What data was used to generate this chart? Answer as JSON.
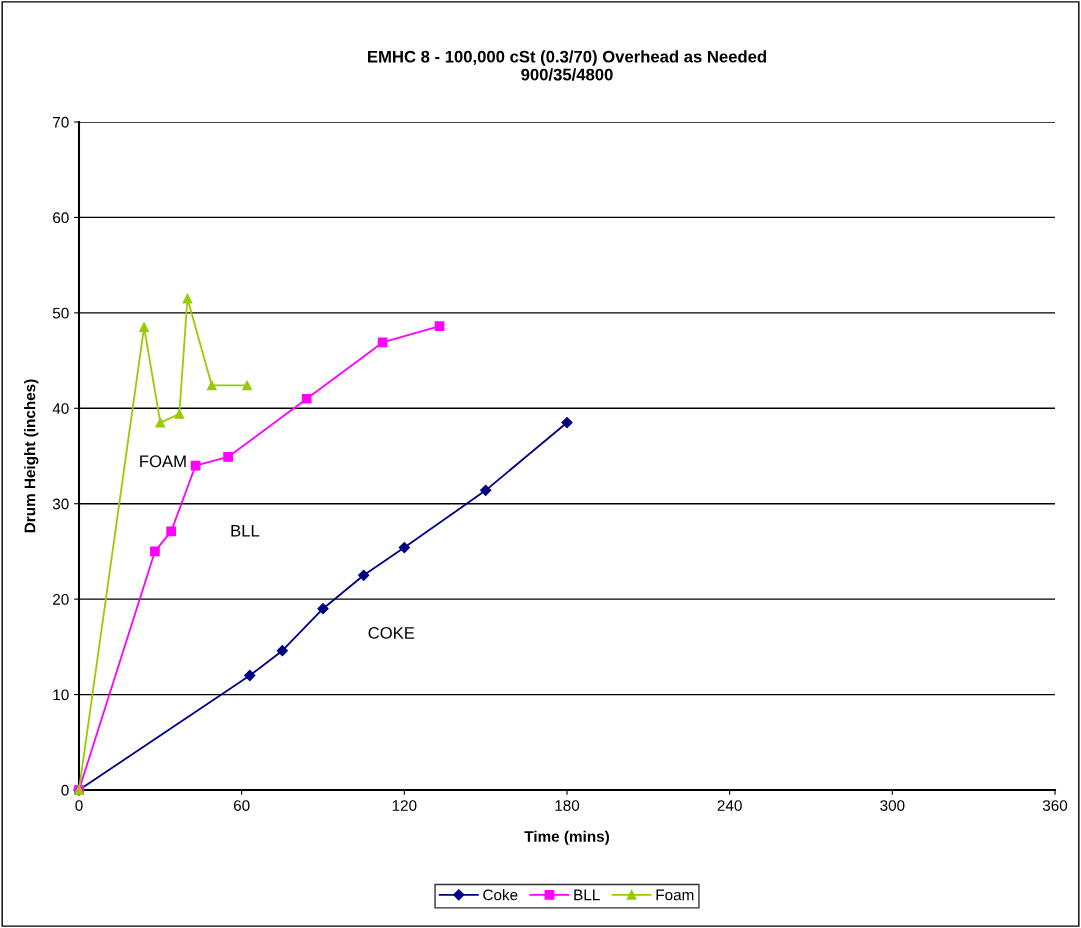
{
  "chart_data": {
    "type": "line",
    "title": "EMHC 8 - 100,000 cSt (0.3/70) Overhead as Needed\n900/35/4800",
    "xlabel": "Time (mins)",
    "ylabel": "Drum Height (inches)",
    "xlim": [
      0,
      360
    ],
    "xticks": [
      0,
      60,
      120,
      180,
      240,
      300,
      360
    ],
    "ylim": [
      0,
      70
    ],
    "yticks": [
      0,
      10,
      20,
      30,
      40,
      50,
      60,
      70
    ],
    "grid": "y",
    "legend": "bottom",
    "series": [
      {
        "name": "Coke",
        "color": "#000080",
        "marker": "diamond",
        "x": [
          0,
          63,
          75,
          90,
          105,
          120,
          150,
          180
        ],
        "values": [
          0,
          12,
          14.6,
          19,
          22.5,
          25.4,
          31.4,
          38.5
        ]
      },
      {
        "name": "BLL",
        "color": "#ff00ff",
        "marker": "square",
        "x": [
          0,
          28,
          34,
          43,
          55,
          84,
          112,
          133
        ],
        "values": [
          0,
          25,
          27.1,
          34,
          34.9,
          41,
          46.9,
          48.6
        ]
      },
      {
        "name": "Foam",
        "color": "#99cc00",
        "marker": "triangle",
        "x": [
          0,
          24,
          30,
          37,
          40,
          49,
          62
        ],
        "values": [
          0,
          48.5,
          38.5,
          39.4,
          51.5,
          42.4,
          42.4
        ]
      }
    ],
    "annotations": [
      "FOAM",
      "BLL",
      "COKE"
    ]
  }
}
